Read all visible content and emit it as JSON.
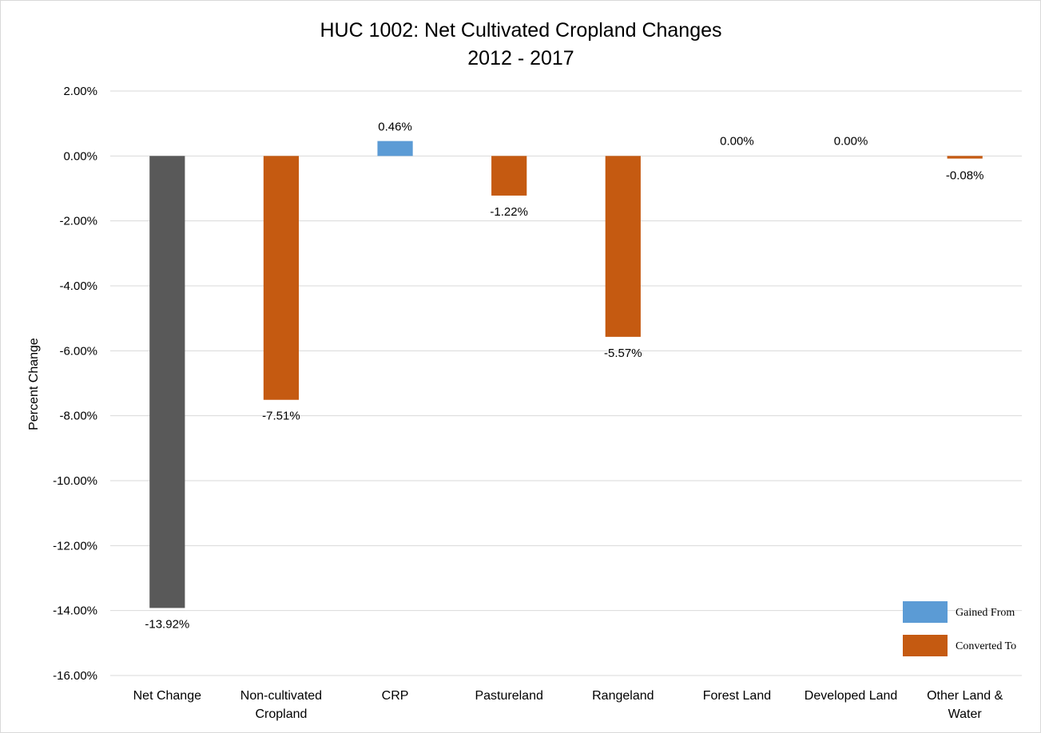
{
  "chart_data": {
    "type": "bar",
    "title": "HUC 1002: Net Cultivated Cropland Changes",
    "subtitle": "2012 - 2017",
    "xlabel": "",
    "ylabel": "Percent Change",
    "ylim": [
      -16,
      2
    ],
    "ytick_step": 2,
    "yticks": [
      "2.00%",
      "0.00%",
      "-2.00%",
      "-4.00%",
      "-6.00%",
      "-8.00%",
      "-10.00%",
      "-12.00%",
      "-14.00%",
      "-16.00%"
    ],
    "grid": true,
    "legend_position": "bottom-right",
    "categories": [
      [
        "Net Change"
      ],
      [
        "Non-cultivated",
        "Cropland"
      ],
      [
        "CRP"
      ],
      [
        "Pastureland"
      ],
      [
        "Rangeland"
      ],
      [
        "Forest Land"
      ],
      [
        "Developed Land"
      ],
      [
        "Other Land &",
        "Water"
      ]
    ],
    "values": [
      -13.92,
      -7.51,
      0.46,
      -1.22,
      -5.57,
      0.0,
      0.0,
      -0.08
    ],
    "data_labels": [
      "-13.92%",
      "-7.51%",
      "0.46%",
      "-1.22%",
      "-5.57%",
      "0.00%",
      "0.00%",
      "-0.08%"
    ],
    "bar_series": [
      "net",
      "converted",
      "gained",
      "converted",
      "converted",
      "gained",
      "gained",
      "converted"
    ],
    "legend": [
      {
        "key": "gained",
        "label": "Gained From",
        "color": "#5b9bd5"
      },
      {
        "key": "converted",
        "label": "Converted To",
        "color": "#c55a11"
      }
    ],
    "colors": {
      "net": "#595959",
      "gained": "#5b9bd5",
      "converted": "#c55a11"
    }
  }
}
